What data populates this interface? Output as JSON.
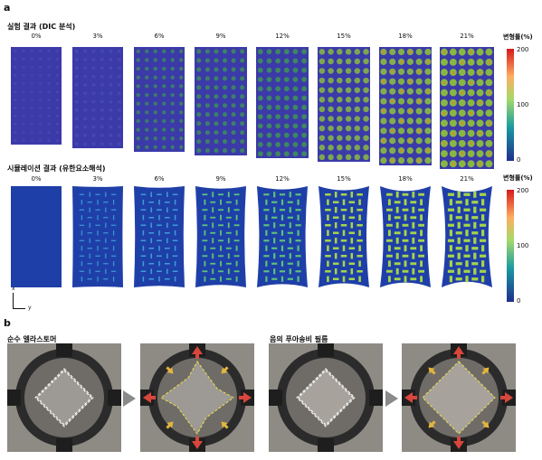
{
  "panel_a": {
    "letter": "a",
    "experiment_title": "실험 결과 (DIC 분석)",
    "simulation_title": "시뮬레이션 결과 (유한요소해석)",
    "strains": [
      "0%",
      "3%",
      "6%",
      "9%",
      "12%",
      "15%",
      "18%",
      "21%"
    ],
    "colorbar": {
      "title": "변형률(%)",
      "ticks": [
        "200",
        "100",
        "0"
      ],
      "colors": {
        "top": "#d7191c",
        "upper": "#fdae61",
        "mid": "#a6d96a",
        "lower": "#1a9ba1",
        "bottom": "#1f2e8c"
      }
    },
    "axes": {
      "x": "x",
      "y": "y"
    }
  },
  "panel_b": {
    "letter": "b",
    "left_title": "순수 엘라스토머",
    "right_title": "음의 푸아송비 필름"
  }
}
